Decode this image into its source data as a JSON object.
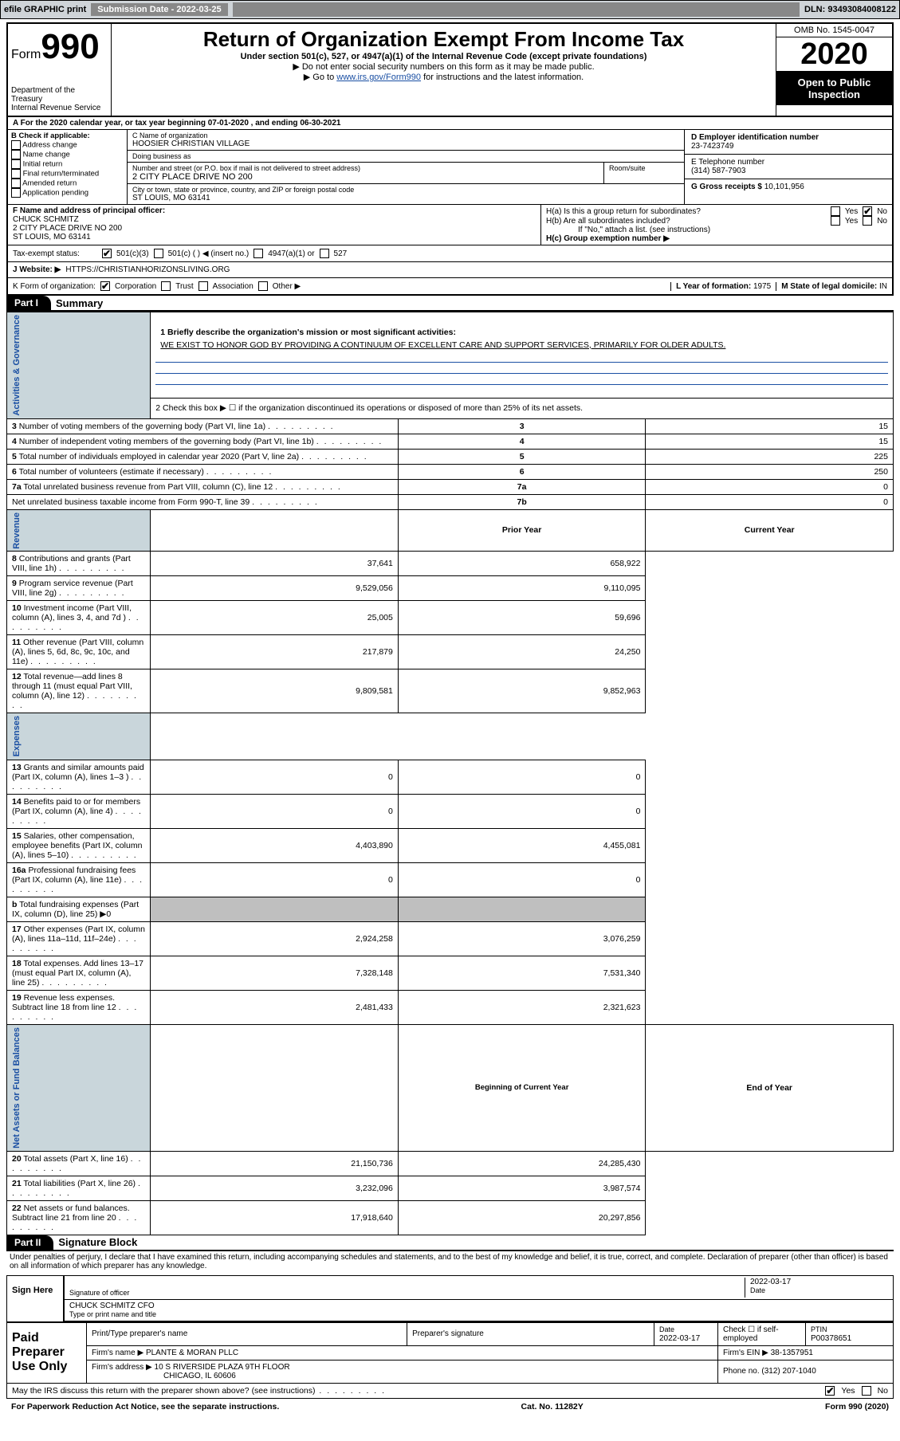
{
  "top_bar": {
    "efile": "efile GRAPHIC print",
    "sub_date_label": "Submission Date - ",
    "sub_date": "2022-03-25",
    "dln_label": "DLN: ",
    "dln": "93493084008122"
  },
  "header": {
    "form_label": "Form",
    "form_num": "990",
    "dept": "Department of the Treasury\nInternal Revenue Service",
    "main_title": "Return of Organization Exempt From Income Tax",
    "sub1": "Under section 501(c), 527, or 4947(a)(1) of the Internal Revenue Code (except private foundations)",
    "sub2": "▶ Do not enter social security numbers on this form as it may be made public.",
    "sub3_pre": "▶ Go to ",
    "sub3_link": "www.irs.gov/Form990",
    "sub3_post": " for instructions and the latest information.",
    "omb": "OMB No. 1545-0047",
    "year": "2020",
    "open_pub": "Open to Public Inspection"
  },
  "period": "A For the 2020 calendar year, or tax year beginning 07-01-2020    , and ending 06-30-2021",
  "block_b": {
    "label": "B Check if applicable:",
    "items": [
      "Address change",
      "Name change",
      "Initial return",
      "Final return/terminated",
      "Amended return",
      "Application pending"
    ]
  },
  "block_c": {
    "name_label": "C Name of organization",
    "name": "HOOSIER CHRISTIAN VILLAGE",
    "dba_label": "Doing business as",
    "dba": "",
    "street_label": "Number and street (or P.O. box if mail is not delivered to street address)",
    "street": "2 CITY PLACE DRIVE NO 200",
    "room_label": "Room/suite",
    "city_label": "City or town, state or province, country, and ZIP or foreign postal code",
    "city": "ST LOUIS, MO  63141"
  },
  "block_d": {
    "ein_label": "D Employer identification number",
    "ein": "23-7423749",
    "tel_label": "E Telephone number",
    "tel": "(314) 587-7903",
    "gross_label": "G Gross receipts $ ",
    "gross": "10,101,956"
  },
  "block_f": {
    "label": "F  Name and address of principal officer:",
    "name": "CHUCK SCHMITZ",
    "addr1": "2 CITY PLACE DRIVE NO 200",
    "addr2": "ST LOUIS, MO  63141"
  },
  "block_h": {
    "a_label": "H(a)  Is this a group return for subordinates?",
    "b_label": "H(b)  Are all subordinates included?",
    "b_note": "If \"No,\" attach a list. (see instructions)",
    "c_label": "H(c)  Group exemption number ▶",
    "yes": "Yes",
    "no": "No"
  },
  "tax_exempt": {
    "label": "Tax-exempt status:",
    "o1": "501(c)(3)",
    "o2": "501(c) (   ) ◀ (insert no.)",
    "o3": "4947(a)(1) or",
    "o4": "527"
  },
  "website": {
    "label": "J   Website: ▶",
    "url": "HTTPS://CHRISTIANHORIZONSLIVING.ORG"
  },
  "korg": {
    "label": "K Form of organization:",
    "o1": "Corporation",
    "o2": "Trust",
    "o3": "Association",
    "o4": "Other ▶",
    "l_label": "L Year of formation:",
    "l_val": "1975",
    "m_label": "M State of legal domicile:",
    "m_val": "IN"
  },
  "part1": {
    "tag": "Part I",
    "title": "Summary",
    "q1_label": "1  Briefly describe the organization's mission or most significant activities:",
    "q1_text": "WE EXIST TO HONOR GOD BY PROVIDING A CONTINUUM OF EXCELLENT CARE AND SUPPORT SERVICES, PRIMARILY FOR OLDER ADULTS.",
    "q2": "2   Check this box ▶ ☐  if the organization discontinued its operations or disposed of more than 25% of its net assets.",
    "rows_gov": [
      {
        "n": "3",
        "label": "Number of voting members of the governing body (Part VI, line 1a)",
        "box": "3",
        "val": "15"
      },
      {
        "n": "4",
        "label": "Number of independent voting members of the governing body (Part VI, line 1b)",
        "box": "4",
        "val": "15"
      },
      {
        "n": "5",
        "label": "Total number of individuals employed in calendar year 2020 (Part V, line 2a)",
        "box": "5",
        "val": "225"
      },
      {
        "n": "6",
        "label": "Total number of volunteers (estimate if necessary)",
        "box": "6",
        "val": "250"
      },
      {
        "n": "7a",
        "label": "Total unrelated business revenue from Part VIII, column (C), line 12",
        "box": "7a",
        "val": "0"
      },
      {
        "n": "",
        "label": "Net unrelated business taxable income from Form 990-T, line 39",
        "box": "7b",
        "val": "0"
      }
    ],
    "prior_label": "Prior Year",
    "current_label": "Current Year",
    "rows_rev": [
      {
        "n": "8",
        "label": "Contributions and grants (Part VIII, line 1h)",
        "py": "37,641",
        "cy": "658,922"
      },
      {
        "n": "9",
        "label": "Program service revenue (Part VIII, line 2g)",
        "py": "9,529,056",
        "cy": "9,110,095"
      },
      {
        "n": "10",
        "label": "Investment income (Part VIII, column (A), lines 3, 4, and 7d )",
        "py": "25,005",
        "cy": "59,696"
      },
      {
        "n": "11",
        "label": "Other revenue (Part VIII, column (A), lines 5, 6d, 8c, 9c, 10c, and 11e)",
        "py": "217,879",
        "cy": "24,250"
      },
      {
        "n": "12",
        "label": "Total revenue—add lines 8 through 11 (must equal Part VIII, column (A), line 12)",
        "py": "9,809,581",
        "cy": "9,852,963"
      }
    ],
    "rows_exp": [
      {
        "n": "13",
        "label": "Grants and similar amounts paid (Part IX, column (A), lines 1–3 )",
        "py": "0",
        "cy": "0"
      },
      {
        "n": "14",
        "label": "Benefits paid to or for members (Part IX, column (A), line 4)",
        "py": "0",
        "cy": "0"
      },
      {
        "n": "15",
        "label": "Salaries, other compensation, employee benefits (Part IX, column (A), lines 5–10)",
        "py": "4,403,890",
        "cy": "4,455,081"
      },
      {
        "n": "16a",
        "label": "Professional fundraising fees (Part IX, column (A), line 11e)",
        "py": "0",
        "cy": "0"
      },
      {
        "n": "b",
        "label": "Total fundraising expenses (Part IX, column (D), line 25) ▶0",
        "py": "",
        "cy": "",
        "shade": true
      },
      {
        "n": "17",
        "label": "Other expenses (Part IX, column (A), lines 11a–11d, 11f–24e)",
        "py": "2,924,258",
        "cy": "3,076,259"
      },
      {
        "n": "18",
        "label": "Total expenses. Add lines 13–17 (must equal Part IX, column (A), line 25)",
        "py": "7,328,148",
        "cy": "7,531,340"
      },
      {
        "n": "19",
        "label": "Revenue less expenses. Subtract line 18 from line 12",
        "py": "2,481,433",
        "cy": "2,321,623"
      }
    ],
    "boy_label": "Beginning of Current Year",
    "eoy_label": "End of Year",
    "rows_net": [
      {
        "n": "20",
        "label": "Total assets (Part X, line 16)",
        "py": "21,150,736",
        "cy": "24,285,430"
      },
      {
        "n": "21",
        "label": "Total liabilities (Part X, line 26)",
        "py": "3,232,096",
        "cy": "3,987,574"
      },
      {
        "n": "22",
        "label": "Net assets or fund balances. Subtract line 21 from line 20",
        "py": "17,918,640",
        "cy": "20,297,856"
      }
    ],
    "vert_gov": "Activities & Governance",
    "vert_rev": "Revenue",
    "vert_exp": "Expenses",
    "vert_net": "Net Assets or Fund Balances"
  },
  "part2": {
    "tag": "Part II",
    "title": "Signature Block",
    "penalties": "Under penalties of perjury, I declare that I have examined this return, including accompanying schedules and statements, and to the best of my knowledge and belief, it is true, correct, and complete. Declaration of preparer (other than officer) is based on all information of which preparer has any knowledge.",
    "sign_here": "Sign Here",
    "sig_officer_label": "Signature of officer",
    "sig_date": "2022-03-17",
    "date_label": "Date",
    "officer_name": "CHUCK SCHMITZ  CFO",
    "officer_type_label": "Type or print name and title",
    "paid_label": "Paid Preparer Use Only",
    "prep_name_label": "Print/Type preparer's name",
    "prep_sig_label": "Preparer's signature",
    "prep_date": "2022-03-17",
    "self_emp_label": "Check ☐ if self-employed",
    "ptin_label": "PTIN",
    "ptin": "P00378651",
    "firm_name_label": "Firm's name   ▶",
    "firm_name": "PLANTE & MORAN PLLC",
    "firm_ein_label": "Firm's EIN ▶",
    "firm_ein": "38-1357951",
    "firm_addr_label": "Firm's address ▶",
    "firm_addr1": "10 S RIVERSIDE PLAZA 9TH FLOOR",
    "firm_addr2": "CHICAGO, IL  60606",
    "phone_label": "Phone no.",
    "phone": "(312) 207-1040",
    "discuss": "May the IRS discuss this return with the preparer shown above? (see instructions)",
    "yes": "Yes",
    "no": "No"
  },
  "footer": {
    "left": "For Paperwork Reduction Act Notice, see the separate instructions.",
    "mid": "Cat. No. 11282Y",
    "right": "Form 990 (2020)"
  },
  "colors": {
    "topbar_bg": "#cfd4d8",
    "blue": "#1a4fa3",
    "shade": "#bfbfbf",
    "vert_bg": "#c9d6db"
  }
}
